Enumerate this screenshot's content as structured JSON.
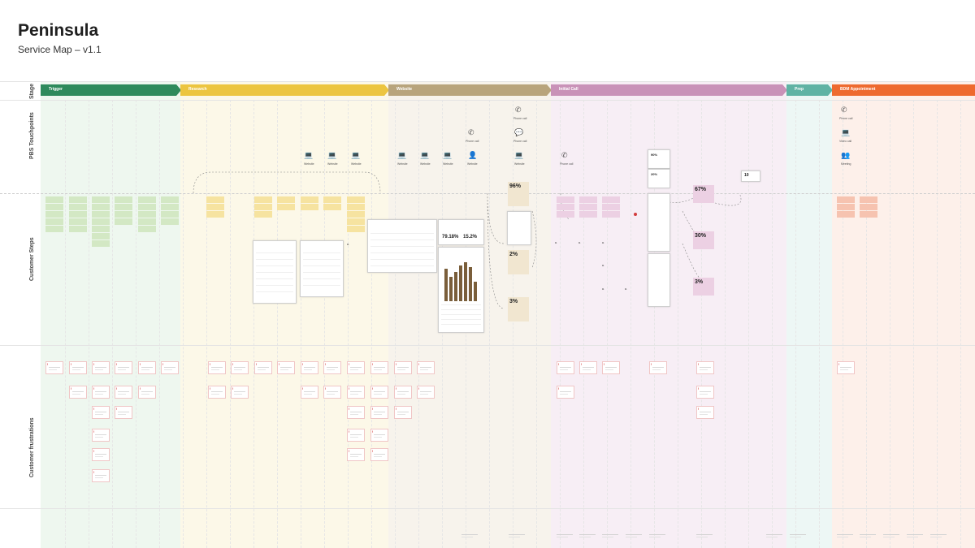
{
  "header": {
    "title": "Peninsula",
    "subtitle": "Service Map – v1.1"
  },
  "rows": {
    "stage": "Stage",
    "touchpoints": "PBS Touchpoints",
    "steps": "Customer Steps",
    "frustrations": "Customer frustrations"
  },
  "stages": [
    {
      "label": "Trigger",
      "color": "#2e8a5c",
      "band": "#eef7ef"
    },
    {
      "label": "Research",
      "color": "#ecc540",
      "band": "#fcf8e8"
    },
    {
      "label": "Website",
      "color": "#b8a47c",
      "band": "#f7f3ec"
    },
    {
      "label": "Initial Call",
      "color": "#c992b8",
      "band": "#f7eef5"
    },
    {
      "label": "Prep",
      "color": "#5fb3a4",
      "band": "#edf7f5"
    },
    {
      "label": "BDM Appointment",
      "color": "#ee6a2f",
      "band": "#fdf0ea"
    }
  ],
  "colors": {
    "green_sticky": "#d3e8c4",
    "yellow_sticky": "#f6e3a0",
    "tan_tag": "#f1e6d0",
    "pink_sticky": "#ecd0e3",
    "orange_sticky": "#f6c3b0",
    "frustration_icon": "#d23c3c"
  },
  "touchpoint_icons": [
    {
      "icon": "laptop-icon",
      "label": "Website"
    },
    {
      "icon": "laptop-icon",
      "label": "Website"
    },
    {
      "icon": "laptop-icon",
      "label": "Website"
    },
    {
      "icon": "laptop-icon",
      "label": "Website"
    },
    {
      "icon": "laptop-icon",
      "label": "Website"
    },
    {
      "icon": "laptop-icon",
      "label": "Website"
    },
    {
      "icon": "phone-icon",
      "label": "Phone call"
    },
    {
      "icon": "person-icon",
      "label": "Website"
    },
    {
      "icon": "phone-icon",
      "label": "Phone call"
    },
    {
      "icon": "chat-icon",
      "label": "Phone call"
    },
    {
      "icon": "laptop-icon",
      "label": "Website"
    },
    {
      "icon": "phone-icon",
      "label": "Phone call"
    },
    {
      "icon": "phone-icon",
      "label": "Phone call"
    },
    {
      "icon": "laptop-icon",
      "label": "Video call"
    },
    {
      "icon": "people-icon",
      "label": "Meeting"
    }
  ],
  "tags": [
    {
      "value": "96%",
      "label": ""
    },
    {
      "value": "2%",
      "label": ""
    },
    {
      "value": "3%",
      "label": ""
    },
    {
      "value": "67%",
      "label": ""
    },
    {
      "value": "30%",
      "label": ""
    },
    {
      "value": "3%",
      "label": ""
    }
  ],
  "metrics": [
    {
      "value": "79.18%",
      "label": ""
    },
    {
      "value": "15.2%",
      "label": ""
    },
    {
      "value": "10",
      "label": ""
    },
    {
      "value": "90%",
      "label": ""
    },
    {
      "value": "20%",
      "label": ""
    }
  ]
}
